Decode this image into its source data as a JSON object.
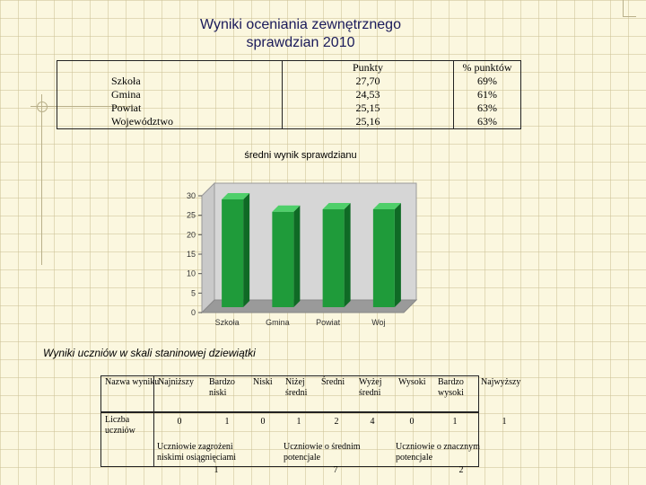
{
  "title_line1": "Wyniki oceniania zewnętrznego",
  "title_line2": "sprawdzian 2010",
  "summary": {
    "headers": [
      "",
      "Punkty",
      "% punktów"
    ],
    "rows": [
      {
        "label": "Szkoła",
        "points": "27,70",
        "percent": "69%"
      },
      {
        "label": "Gmina",
        "points": "24,53",
        "percent": "61%"
      },
      {
        "label": "Powiat",
        "points": "25,15",
        "percent": "63%"
      },
      {
        "label": "Województwo",
        "points": "25,16",
        "percent": "63%"
      }
    ]
  },
  "chart_data": {
    "type": "bar",
    "title": "średni wynik sprawdzianu",
    "categories": [
      "Szkoła",
      "Gmina",
      "Powiat",
      "Woj"
    ],
    "values": [
      27.7,
      24.53,
      25.15,
      25.16
    ],
    "ylim": [
      0,
      30
    ],
    "yticks": [
      "0",
      "5",
      "10",
      "15",
      "20",
      "25",
      "30"
    ],
    "bar_color": "#1f9b3a",
    "style": "3d",
    "grid": false
  },
  "stanine": {
    "title": "Wyniki uczniów w skali staninowej dziewiątki",
    "row_label_name": "Nazwa wyniku",
    "row_label_count": "Liczba uczniów",
    "columns": [
      {
        "name": "Najniższy",
        "count": "0"
      },
      {
        "name": "Bardzo niski",
        "count": "1"
      },
      {
        "name": "Niski",
        "count": "0"
      },
      {
        "name": "Niżej średni",
        "count": "1"
      },
      {
        "name": "Średni",
        "count": "2"
      },
      {
        "name": "Wyżej średni",
        "count": "4"
      },
      {
        "name": "Wysoki",
        "count": "0"
      },
      {
        "name": "Bardzo wysoki",
        "count": "1"
      },
      {
        "name": "Najwyższy",
        "count": "1"
      }
    ],
    "groups": [
      {
        "label": "Uczniowie zagrożeni niskimi osiągnięciami",
        "total": "1"
      },
      {
        "label": "Uczniowie o średnim potencjale",
        "total": "7"
      },
      {
        "label": "Uczniowie o znacznym potencjale",
        "total": "2"
      }
    ]
  }
}
